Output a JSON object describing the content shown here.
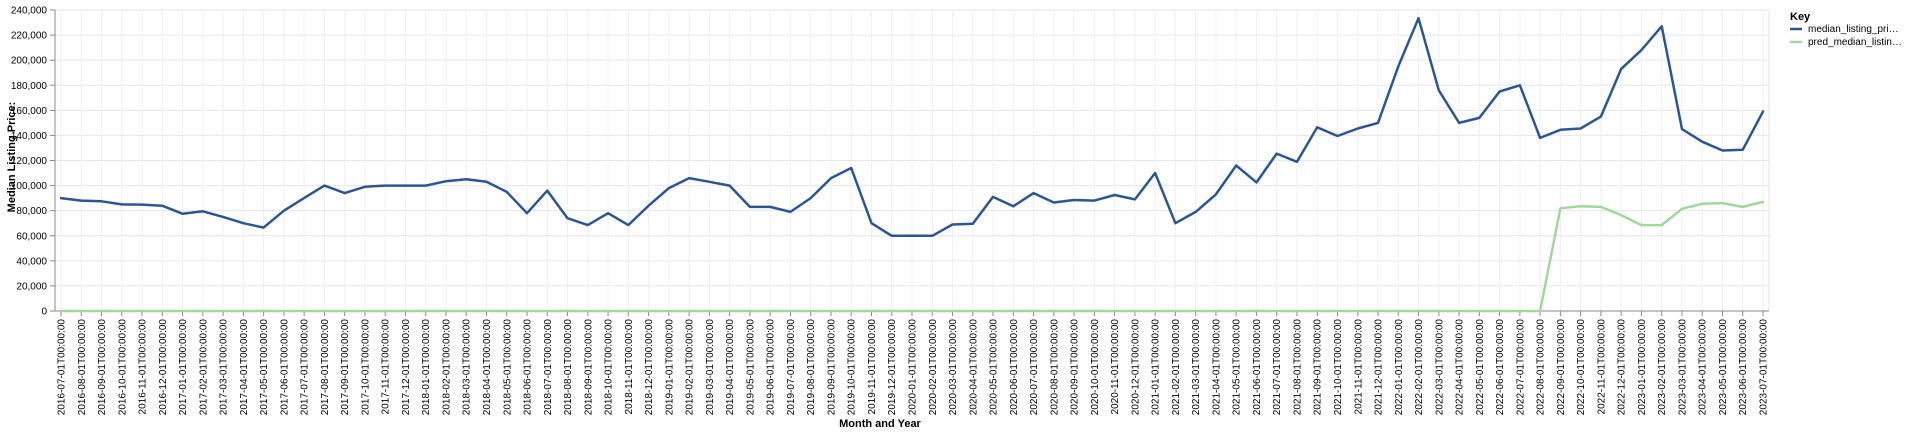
{
  "chart_data": {
    "type": "line",
    "xlabel": "Month and Year",
    "ylabel": "Median Listing Price:",
    "ylim": [
      0,
      240000
    ],
    "yticks": [
      "0",
      "20,000",
      "40,000",
      "60,000",
      "80,000",
      "100,000",
      "120,000",
      "140,000",
      "160,000",
      "180,000",
      "200,000",
      "220,000",
      "240,000"
    ],
    "grid": true,
    "legend": {
      "title": "Key",
      "position": "top-right"
    },
    "x": [
      "2016-07-01T00:00:00",
      "2016-08-01T00:00:00",
      "2016-09-01T00:00:00",
      "2016-10-01T00:00:00",
      "2016-11-01T00:00:00",
      "2016-12-01T00:00:00",
      "2017-01-01T00:00:00",
      "2017-02-01T00:00:00",
      "2017-03-01T00:00:00",
      "2017-04-01T00:00:00",
      "2017-05-01T00:00:00",
      "2017-06-01T00:00:00",
      "2017-07-01T00:00:00",
      "2017-08-01T00:00:00",
      "2017-09-01T00:00:00",
      "2017-10-01T00:00:00",
      "2017-11-01T00:00:00",
      "2017-12-01T00:00:00",
      "2018-01-01T00:00:00",
      "2018-02-01T00:00:00",
      "2018-03-01T00:00:00",
      "2018-04-01T00:00:00",
      "2018-05-01T00:00:00",
      "2018-06-01T00:00:00",
      "2018-07-01T00:00:00",
      "2018-08-01T00:00:00",
      "2018-09-01T00:00:00",
      "2018-10-01T00:00:00",
      "2018-11-01T00:00:00",
      "2018-12-01T00:00:00",
      "2019-01-01T00:00:00",
      "2019-02-01T00:00:00",
      "2019-03-01T00:00:00",
      "2019-04-01T00:00:00",
      "2019-05-01T00:00:00",
      "2019-06-01T00:00:00",
      "2019-07-01T00:00:00",
      "2019-08-01T00:00:00",
      "2019-09-01T00:00:00",
      "2019-10-01T00:00:00",
      "2019-11-01T00:00:00",
      "2019-12-01T00:00:00",
      "2020-01-01T00:00:00",
      "2020-02-01T00:00:00",
      "2020-03-01T00:00:00",
      "2020-04-01T00:00:00",
      "2020-05-01T00:00:00",
      "2020-06-01T00:00:00",
      "2020-07-01T00:00:00",
      "2020-08-01T00:00:00",
      "2020-09-01T00:00:00",
      "2020-10-01T00:00:00",
      "2020-11-01T00:00:00",
      "2020-12-01T00:00:00",
      "2021-01-01T00:00:00",
      "2021-02-01T00:00:00",
      "2021-03-01T00:00:00",
      "2021-04-01T00:00:00",
      "2021-05-01T00:00:00",
      "2021-06-01T00:00:00",
      "2021-07-01T00:00:00",
      "2021-08-01T00:00:00",
      "2021-09-01T00:00:00",
      "2021-10-01T00:00:00",
      "2021-11-01T00:00:00",
      "2021-12-01T00:00:00",
      "2022-01-01T00:00:00",
      "2022-02-01T00:00:00",
      "2022-03-01T00:00:00",
      "2022-04-01T00:00:00",
      "2022-05-01T00:00:00",
      "2022-06-01T00:00:00",
      "2022-07-01T00:00:00",
      "2022-08-01T00:00:00",
      "2022-09-01T00:00:00",
      "2022-10-01T00:00:00",
      "2022-11-01T00:00:00",
      "2022-12-01T00:00:00",
      "2023-01-01T00:00:00",
      "2023-02-01T00:00:00",
      "2023-03-01T00:00:00",
      "2023-04-01T00:00:00",
      "2023-05-01T00:00:00",
      "2023-06-01T00:00:00",
      "2023-07-01T00:00:00"
    ],
    "series": [
      {
        "name": "median_listing_pri…",
        "color": "#2a5696",
        "values": [
          90000,
          88000,
          87500,
          85000,
          84800,
          84000,
          77500,
          79500,
          75000,
          70000,
          66500,
          80000,
          90000,
          100000,
          94000,
          99000,
          100000,
          100000,
          100000,
          103500,
          105000,
          103000,
          95000,
          78000,
          96000,
          74000,
          68500,
          78000,
          68500,
          84000,
          98000,
          106000,
          103000,
          100000,
          83000,
          83000,
          79000,
          90000,
          106000,
          114000,
          70000,
          60000,
          60000,
          60000,
          69000,
          69500,
          91000,
          83500,
          94000,
          86500,
          88500,
          88000,
          92500,
          89000,
          110000,
          70000,
          79000,
          93000,
          116000,
          102500,
          125500,
          119000,
          146500,
          139500,
          145500,
          150000,
          195000,
          233500,
          176000,
          150000,
          154000,
          175000,
          180000,
          138000,
          144500,
          145500,
          155000,
          193000,
          208000,
          227000,
          145000,
          135000,
          128000,
          128500,
          159000
        ]
      },
      {
        "name": "pred_median_listin…",
        "color": "#9fd89a",
        "values": [
          0,
          0,
          0,
          0,
          0,
          0,
          0,
          0,
          0,
          0,
          0,
          0,
          0,
          0,
          0,
          0,
          0,
          0,
          0,
          0,
          0,
          0,
          0,
          0,
          0,
          0,
          0,
          0,
          0,
          0,
          0,
          0,
          0,
          0,
          0,
          0,
          0,
          0,
          0,
          0,
          0,
          0,
          0,
          0,
          0,
          0,
          0,
          0,
          0,
          0,
          0,
          0,
          0,
          0,
          0,
          0,
          0,
          0,
          0,
          0,
          0,
          0,
          0,
          0,
          0,
          0,
          0,
          0,
          0,
          0,
          0,
          0,
          0,
          0,
          82000,
          83500,
          83000,
          76500,
          68500,
          68500,
          81500,
          85500,
          86000,
          83000,
          87000
        ]
      }
    ]
  }
}
